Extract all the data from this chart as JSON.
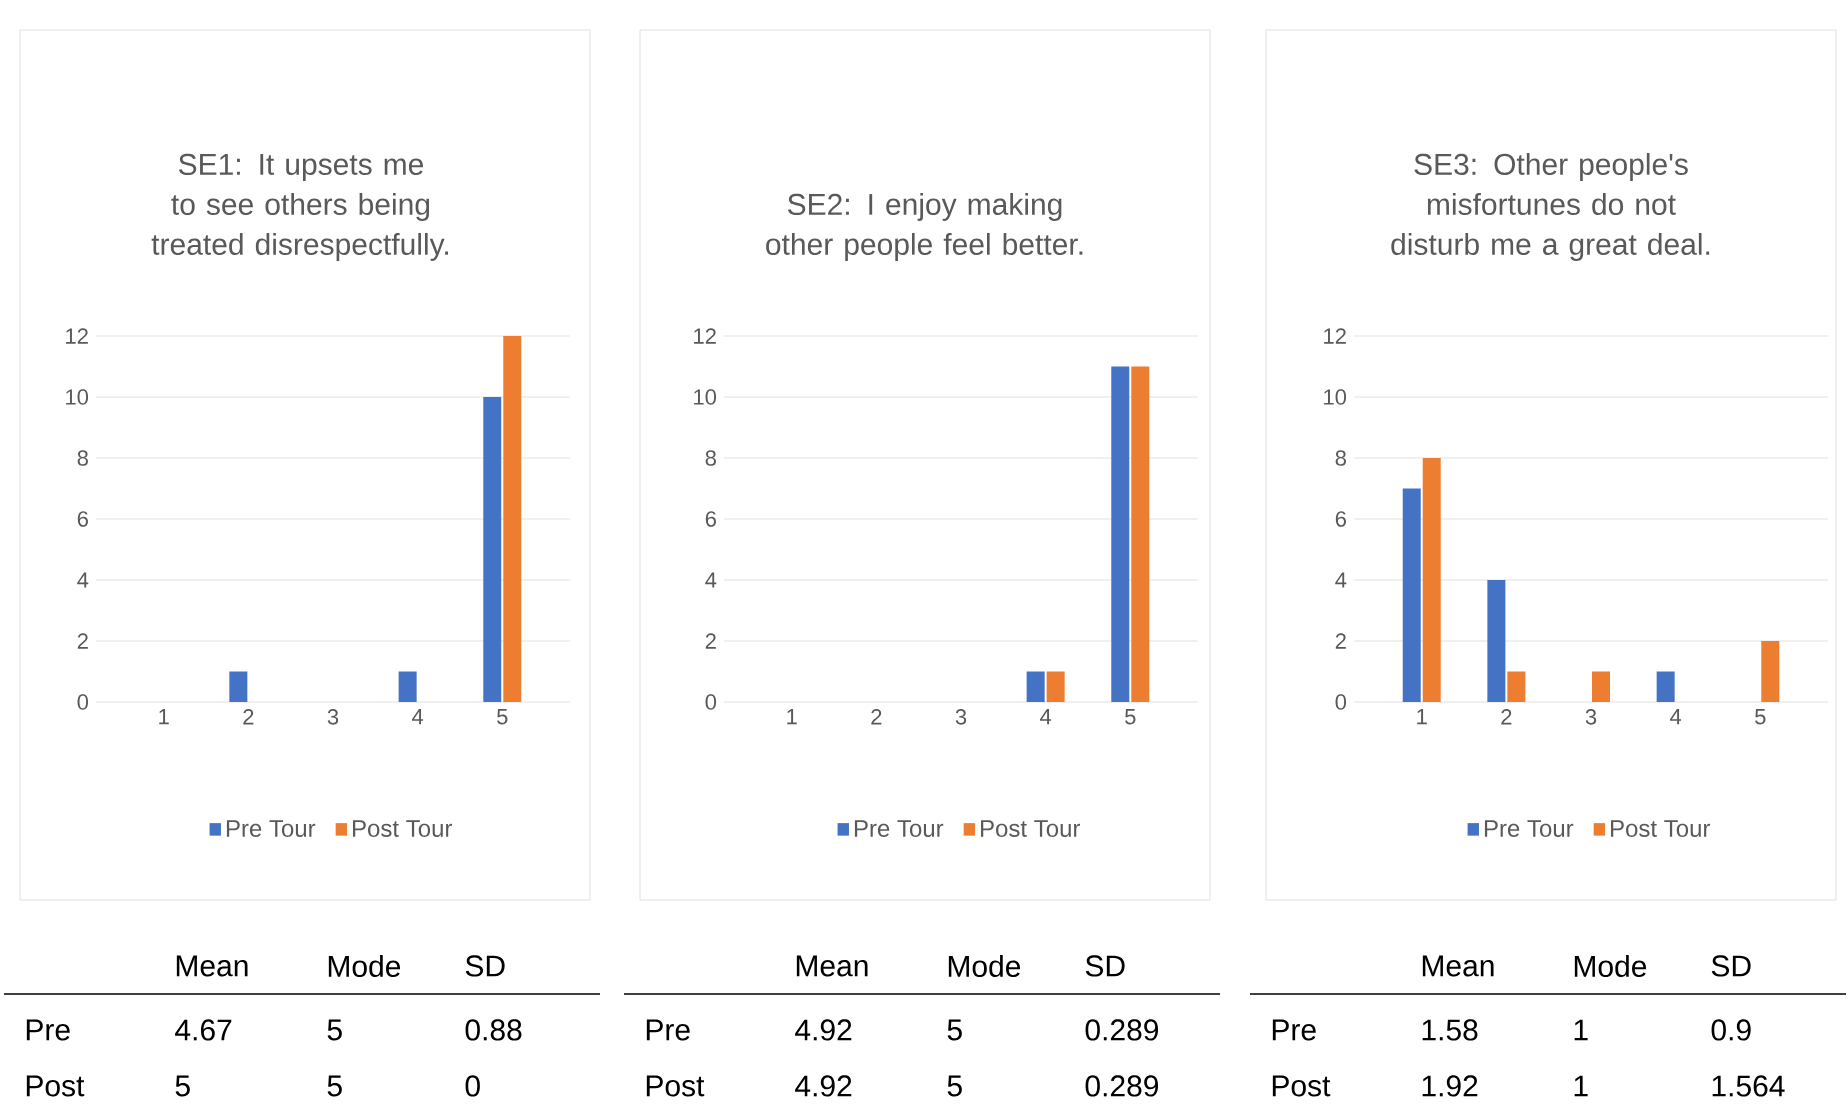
{
  "chart_data": [
    {
      "type": "bar",
      "title": "SE1: It upsets me to see others being treated disrespectfully.",
      "categories": [
        "1",
        "2",
        "3",
        "4",
        "5"
      ],
      "series": [
        {
          "name": "Pre Tour",
          "color": "#4472c4",
          "values": [
            0,
            1,
            0,
            1,
            10
          ]
        },
        {
          "name": "Post Tour",
          "color": "#ed7d31",
          "values": [
            0,
            0,
            0,
            0,
            12
          ]
        }
      ],
      "ylim": [
        0,
        12
      ],
      "yticks": [
        0,
        2,
        4,
        6,
        8,
        10,
        12
      ],
      "grid": "y",
      "legend": "bottom",
      "annotations": [
        "Mean",
        "Mode",
        "SD",
        "Pre",
        "4.67",
        "5",
        "0.88",
        "Post",
        "5",
        "5",
        "0"
      ]
    },
    {
      "type": "bar",
      "title": "SE2: I enjoy making other people feel better.",
      "categories": [
        "1",
        "2",
        "3",
        "4",
        "5"
      ],
      "series": [
        {
          "name": "Pre Tour",
          "color": "#4472c4",
          "values": [
            0,
            0,
            0,
            1,
            11
          ]
        },
        {
          "name": "Post Tour",
          "color": "#ed7d31",
          "values": [
            0,
            0,
            0,
            1,
            11
          ]
        }
      ],
      "ylim": [
        0,
        12
      ],
      "yticks": [
        0,
        2,
        4,
        6,
        8,
        10,
        12
      ],
      "grid": "y",
      "legend": "bottom",
      "annotations": [
        "Mean",
        "Mode",
        "SD",
        "Pre",
        "4.92",
        "5",
        "0.289",
        "Post",
        "4.92",
        "5",
        "0.289"
      ]
    },
    {
      "type": "bar",
      "title": "SE3: Other people's misfortunes do not disturb me a great deal.",
      "categories": [
        "1",
        "2",
        "3",
        "4",
        "5"
      ],
      "series": [
        {
          "name": "Pre Tour",
          "color": "#4472c4",
          "values": [
            7,
            4,
            0,
            1,
            0
          ]
        },
        {
          "name": "Post Tour",
          "color": "#ed7d31",
          "values": [
            8,
            1,
            1,
            0,
            2
          ]
        }
      ],
      "ylim": [
        0,
        12
      ],
      "yticks": [
        0,
        2,
        4,
        6,
        8,
        10,
        12
      ],
      "grid": "y",
      "legend": "bottom",
      "annotations": [
        "Mean",
        "Mode",
        "SD",
        "Pre",
        "1.58",
        "1",
        "0.9",
        "Post",
        "1.92",
        "1",
        "1.564"
      ]
    }
  ]
}
